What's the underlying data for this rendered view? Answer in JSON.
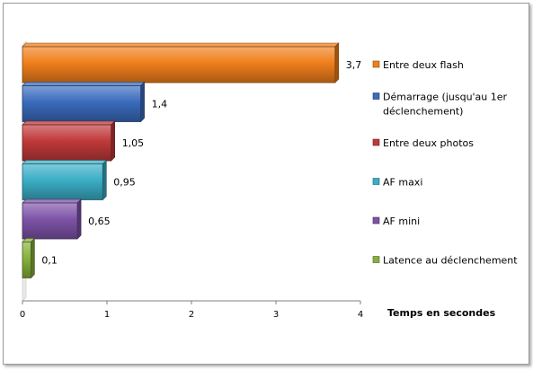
{
  "chart_data": {
    "type": "bar",
    "orientation": "horizontal",
    "categories": [
      "Entre deux flash",
      "Démarrage (jusqu'au 1er déclenchement)",
      "Entre deux photos",
      "AF maxi",
      "AF mini",
      "Latence au déclenchement"
    ],
    "values": [
      3.7,
      1.4,
      1.05,
      0.95,
      0.65,
      0.1
    ],
    "data_labels": [
      "3,7",
      "1,4",
      "1,05",
      "0,95",
      "0,65",
      "0,1"
    ],
    "colors": [
      "#f07f1c",
      "#3a6bbd",
      "#c0393a",
      "#3aaec6",
      "#7d53a8",
      "#86b13c"
    ],
    "legend": [
      {
        "lines": [
          "Entre deux flash"
        ]
      },
      {
        "lines": [
          "Démarrage (jusqu'au 1er",
          "déclenchement)"
        ]
      },
      {
        "lines": [
          "Entre deux photos"
        ]
      },
      {
        "lines": [
          "AF maxi"
        ]
      },
      {
        "lines": [
          "AF mini"
        ]
      },
      {
        "lines": [
          "Latence au déclenchement"
        ]
      }
    ],
    "legend_position": "right",
    "xlabel": "Temps en secondes",
    "xlim": [
      0,
      4
    ],
    "xticks": [
      0,
      1,
      2,
      3,
      4
    ],
    "grid": false
  }
}
